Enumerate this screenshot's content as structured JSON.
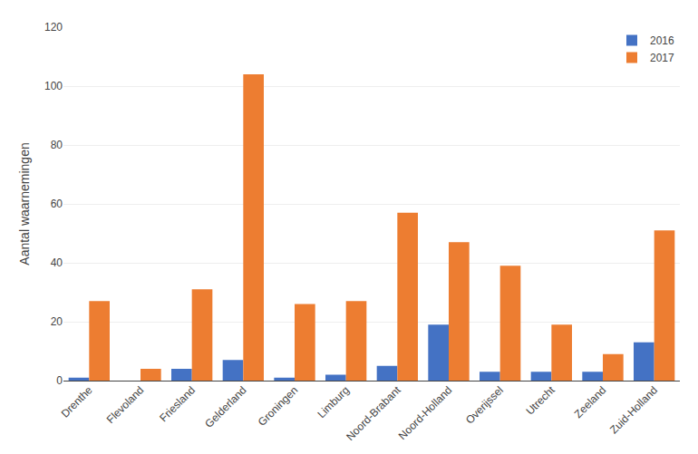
{
  "chart_data": {
    "type": "bar",
    "categories": [
      "Drenthe",
      "Flevoland",
      "Friesland",
      "Gelderland",
      "Groningen",
      "Limburg",
      "Noord-Brabant",
      "Noord-Holland",
      "Overijssel",
      "Utrecht",
      "Zeeland",
      "Zuid-Holland"
    ],
    "series": [
      {
        "name": "2016",
        "color": "#4472C4",
        "values": [
          1,
          0,
          4,
          7,
          1,
          2,
          5,
          19,
          3,
          3,
          3,
          13
        ]
      },
      {
        "name": "2017",
        "color": "#ED7D31",
        "values": [
          27,
          4,
          31,
          104,
          26,
          27,
          57,
          47,
          39,
          19,
          9,
          51
        ]
      }
    ],
    "ylabel": "Aantal waarnemingen",
    "ylim": [
      0,
      120
    ],
    "yticks": [
      0,
      20,
      40,
      60,
      80,
      100,
      120
    ],
    "grid": true,
    "legend": "upper right"
  }
}
